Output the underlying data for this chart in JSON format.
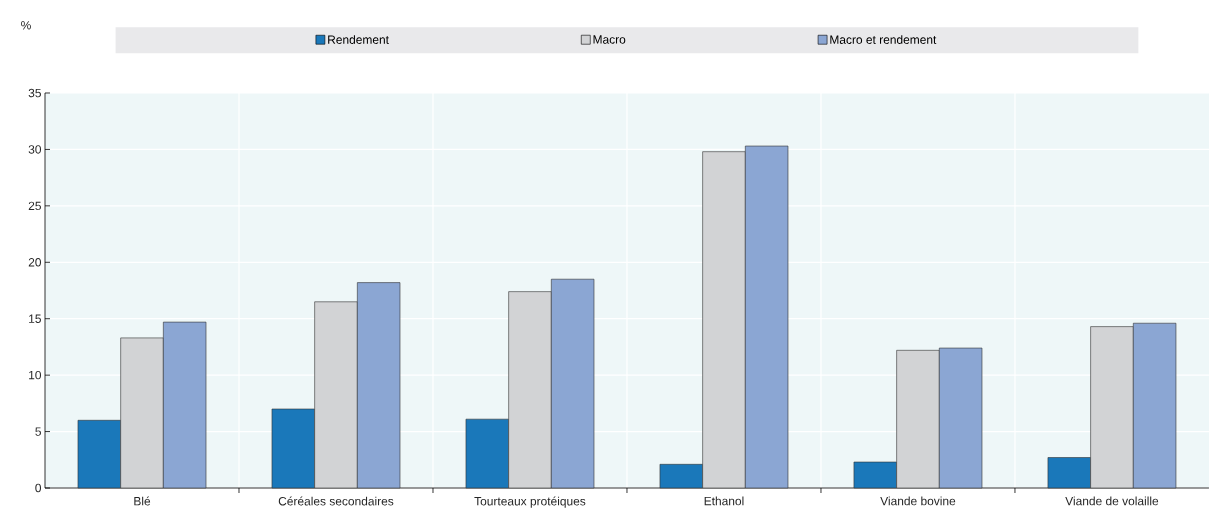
{
  "chart_data": {
    "type": "bar",
    "ylabel": "%",
    "categories": [
      "Blé",
      "Céréales secondaires",
      "Tourteaux protéiques",
      "Ethanol",
      "Viande bovine",
      "Viande de volaille"
    ],
    "series": [
      {
        "name": "Rendement",
        "color": "#1a78ba",
        "values": [
          6.0,
          7.0,
          6.1,
          2.1,
          2.3,
          2.7
        ]
      },
      {
        "name": "Macro",
        "color": "#d2d3d5",
        "values": [
          13.3,
          16.5,
          17.4,
          29.8,
          12.2,
          14.3
        ]
      },
      {
        "name": "Macro et rendement",
        "color": "#8ba6d3",
        "values": [
          14.7,
          18.2,
          18.5,
          30.3,
          12.4,
          14.6
        ]
      }
    ],
    "ylim": [
      0,
      35
    ],
    "yticks": [
      0,
      5,
      10,
      15,
      20,
      25,
      30,
      35
    ],
    "grid": true,
    "legend": "top"
  }
}
